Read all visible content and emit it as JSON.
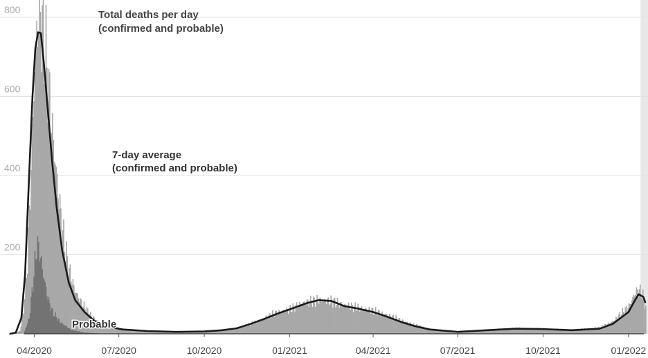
{
  "chart_data": {
    "type": "bar",
    "title": "",
    "xlabel": "",
    "ylabel": "",
    "ylim": [
      0,
      820
    ],
    "yticks": [
      200,
      400,
      600,
      800
    ],
    "x_start": "2020-02-24",
    "x_end": "2022-01-22",
    "xticks": [
      {
        "date": "2020-04-01",
        "label": "04/2020"
      },
      {
        "date": "2020-07-01",
        "label": "07/2020"
      },
      {
        "date": "2020-10-01",
        "label": "10/2020"
      },
      {
        "date": "2021-01-01",
        "label": "01/2021"
      },
      {
        "date": "2021-04-01",
        "label": "04/2021"
      },
      {
        "date": "2021-07-01",
        "label": "07/2021"
      },
      {
        "date": "2021-10-01",
        "label": "10/2021"
      },
      {
        "date": "2022-01-01",
        "label": "01/2022"
      }
    ],
    "highlight_period": {
      "from": "2022-01-14",
      "to": "2022-01-22"
    },
    "colors": {
      "total": "#a8a8a8",
      "probable": "#737373",
      "average": "#1a1a1a",
      "grid": "#e2e2e2",
      "highlight": "#e8e8e8"
    },
    "series": [
      {
        "name": "Total deaths per day (confirmed and probable)",
        "kind": "bars",
        "points": [
          [
            "2020-03-10",
            0
          ],
          [
            "2020-03-16",
            8
          ],
          [
            "2020-03-20",
            60
          ],
          [
            "2020-03-24",
            180
          ],
          [
            "2020-03-28",
            420
          ],
          [
            "2020-03-31",
            620
          ],
          [
            "2020-04-03",
            760
          ],
          [
            "2020-04-06",
            815
          ],
          [
            "2020-04-09",
            780
          ],
          [
            "2020-04-12",
            720
          ],
          [
            "2020-04-15",
            650
          ],
          [
            "2020-04-18",
            560
          ],
          [
            "2020-04-22",
            460
          ],
          [
            "2020-04-26",
            360
          ],
          [
            "2020-05-01",
            260
          ],
          [
            "2020-05-07",
            170
          ],
          [
            "2020-05-14",
            110
          ],
          [
            "2020-05-22",
            75
          ],
          [
            "2020-06-01",
            45
          ],
          [
            "2020-06-10",
            28
          ],
          [
            "2020-06-25",
            15
          ],
          [
            "2020-07-15",
            9
          ],
          [
            "2020-08-15",
            6
          ],
          [
            "2020-09-15",
            5
          ],
          [
            "2020-10-15",
            7
          ],
          [
            "2020-11-01",
            12
          ],
          [
            "2020-11-15",
            22
          ],
          [
            "2020-12-01",
            35
          ],
          [
            "2020-12-15",
            52
          ],
          [
            "2021-01-01",
            62
          ],
          [
            "2021-01-15",
            78
          ],
          [
            "2021-02-01",
            85
          ],
          [
            "2021-02-15",
            82
          ],
          [
            "2021-03-01",
            72
          ],
          [
            "2021-03-15",
            66
          ],
          [
            "2021-04-01",
            58
          ],
          [
            "2021-04-15",
            48
          ],
          [
            "2021-05-01",
            34
          ],
          [
            "2021-05-15",
            22
          ],
          [
            "2021-06-01",
            12
          ],
          [
            "2021-07-01",
            5
          ],
          [
            "2021-08-01",
            10
          ],
          [
            "2021-09-01",
            14
          ],
          [
            "2021-10-01",
            13
          ],
          [
            "2021-11-01",
            10
          ],
          [
            "2021-12-01",
            16
          ],
          [
            "2021-12-15",
            32
          ],
          [
            "2022-01-01",
            70
          ],
          [
            "2022-01-08",
            105
          ],
          [
            "2022-01-12",
            110
          ],
          [
            "2022-01-16",
            95
          ],
          [
            "2022-01-20",
            60
          ]
        ]
      },
      {
        "name": "Probable",
        "kind": "bars",
        "points": [
          [
            "2020-03-20",
            0
          ],
          [
            "2020-03-26",
            40
          ],
          [
            "2020-03-31",
            150
          ],
          [
            "2020-04-03",
            225
          ],
          [
            "2020-04-06",
            210
          ],
          [
            "2020-04-10",
            150
          ],
          [
            "2020-04-15",
            90
          ],
          [
            "2020-04-20",
            55
          ],
          [
            "2020-04-28",
            30
          ],
          [
            "2020-05-10",
            10
          ],
          [
            "2020-05-25",
            3
          ],
          [
            "2020-06-15",
            0
          ]
        ]
      },
      {
        "name": "7-day average (confirmed and probable)",
        "kind": "line",
        "points": [
          [
            "2020-03-06",
            0
          ],
          [
            "2020-03-12",
            3
          ],
          [
            "2020-03-18",
            40
          ],
          [
            "2020-03-22",
            150
          ],
          [
            "2020-03-26",
            380
          ],
          [
            "2020-03-30",
            600
          ],
          [
            "2020-04-02",
            720
          ],
          [
            "2020-04-05",
            762
          ],
          [
            "2020-04-08",
            760
          ],
          [
            "2020-04-11",
            690
          ],
          [
            "2020-04-15",
            580
          ],
          [
            "2020-04-20",
            440
          ],
          [
            "2020-04-25",
            320
          ],
          [
            "2020-05-01",
            210
          ],
          [
            "2020-05-08",
            130
          ],
          [
            "2020-05-15",
            85
          ],
          [
            "2020-05-25",
            55
          ],
          [
            "2020-06-05",
            32
          ],
          [
            "2020-06-20",
            18
          ],
          [
            "2020-07-05",
            11
          ],
          [
            "2020-08-01",
            7
          ],
          [
            "2020-09-01",
            5
          ],
          [
            "2020-10-01",
            6
          ],
          [
            "2020-10-20",
            9
          ],
          [
            "2020-11-05",
            14
          ],
          [
            "2020-11-20",
            25
          ],
          [
            "2020-12-05",
            38
          ],
          [
            "2020-12-20",
            52
          ],
          [
            "2021-01-05",
            65
          ],
          [
            "2021-01-20",
            78
          ],
          [
            "2021-02-01",
            85
          ],
          [
            "2021-02-15",
            83
          ],
          [
            "2021-03-01",
            70
          ],
          [
            "2021-03-15",
            64
          ],
          [
            "2021-04-01",
            55
          ],
          [
            "2021-04-15",
            44
          ],
          [
            "2021-05-01",
            30
          ],
          [
            "2021-05-15",
            20
          ],
          [
            "2021-06-01",
            11
          ],
          [
            "2021-07-01",
            5
          ],
          [
            "2021-08-01",
            9
          ],
          [
            "2021-09-01",
            13
          ],
          [
            "2021-10-01",
            12
          ],
          [
            "2021-11-01",
            9
          ],
          [
            "2021-12-01",
            13
          ],
          [
            "2021-12-15",
            25
          ],
          [
            "2022-01-01",
            55
          ],
          [
            "2022-01-08",
            85
          ],
          [
            "2022-01-12",
            100
          ],
          [
            "2022-01-17",
            93
          ],
          [
            "2022-01-19",
            80
          ]
        ]
      }
    ],
    "annotations": [
      {
        "lines": [
          "Total deaths per day",
          "(confirmed and probable)"
        ]
      },
      {
        "lines": [
          "7-day average",
          "(confirmed and probable)"
        ]
      },
      {
        "lines": [
          "Probable"
        ]
      }
    ]
  }
}
